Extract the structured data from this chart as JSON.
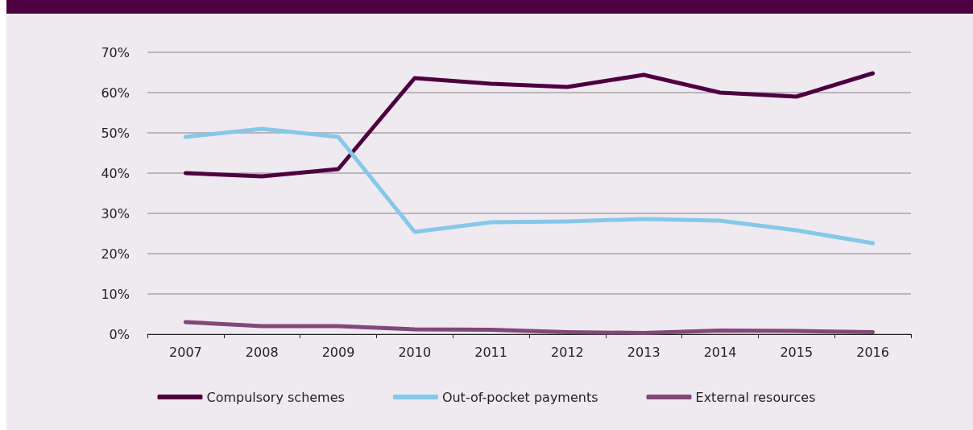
{
  "chart_data": {
    "type": "line",
    "categories": [
      "2007",
      "2008",
      "2009",
      "2010",
      "2011",
      "2012",
      "2013",
      "2014",
      "2015",
      "2016"
    ],
    "series": [
      {
        "name": "Compulsory schemes",
        "color": "#4e0040",
        "values": [
          40,
          39.2,
          41,
          63.6,
          62.2,
          61.4,
          64.4,
          60,
          59,
          64.8
        ]
      },
      {
        "name": "Out-of-pocket payments",
        "color": "#85c8e8",
        "values": [
          49,
          51,
          49,
          25.4,
          27.8,
          28,
          28.6,
          28.2,
          25.8,
          22.6
        ]
      },
      {
        "name": "External resources",
        "color": "#824876",
        "values": [
          3,
          2,
          2,
          1.2,
          1.1,
          0.5,
          0.3,
          0.9,
          0.8,
          0.5
        ]
      }
    ],
    "ylim": [
      0,
      70
    ],
    "yticks": [
      {
        "value": 0,
        "label": "0%"
      },
      {
        "value": 10,
        "label": "10%"
      },
      {
        "value": 20,
        "label": "20%"
      },
      {
        "value": 30,
        "label": "30%"
      },
      {
        "value": 40,
        "label": "40%"
      },
      {
        "value": 50,
        "label": "50%"
      },
      {
        "value": 60,
        "label": "60%"
      },
      {
        "value": 70,
        "label": "70%"
      }
    ],
    "grid": "y",
    "legend": "bottom",
    "marker": "none",
    "line_style": "solid"
  }
}
